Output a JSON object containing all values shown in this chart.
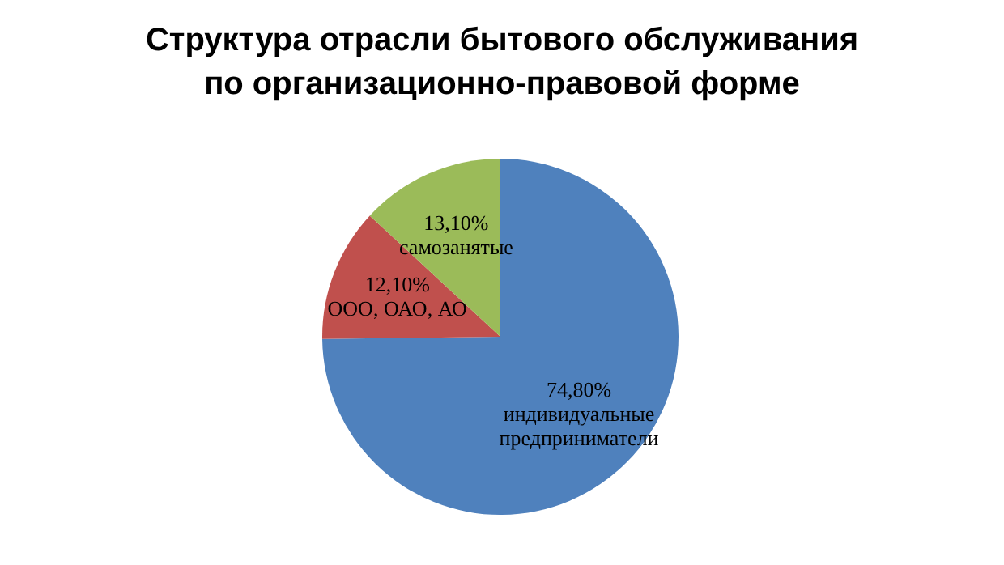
{
  "chart_data": {
    "type": "pie",
    "title": "Структура отрасли бытового обслуживания по организационно-правовой форме",
    "categories": [
      "индивидуальные предприниматели",
      "ООО, ОАО, АО",
      "самозанятые"
    ],
    "values": [
      74.8,
      12.1,
      13.1
    ],
    "value_labels": [
      "74,80%",
      "12,10%",
      "13,10%"
    ],
    "colors": [
      "#4f81bd",
      "#c0504d",
      "#9bbb59"
    ],
    "legend": false
  }
}
